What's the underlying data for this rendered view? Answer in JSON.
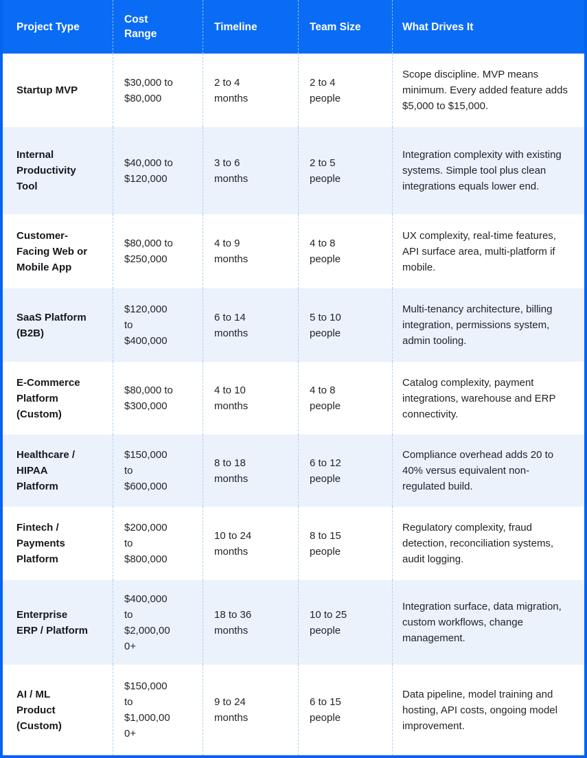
{
  "table": {
    "columns": [
      "Project Type",
      "Cost Range",
      "Timeline",
      "Team Size",
      "What Drives It"
    ],
    "rows": [
      {
        "project_type": "Startup MVP",
        "cost_range": "$30,000 to $80,000",
        "timeline": "2 to 4 months",
        "team_size": "2 to 4 people",
        "drivers": "Scope discipline. MVP means minimum. Every added feature adds $5,000 to $15,000."
      },
      {
        "project_type": "Internal Productivity Tool",
        "cost_range": "$40,000 to $120,000",
        "timeline": "3 to 6 months",
        "team_size": "2 to 5 people",
        "drivers": "Integration complexity with existing systems. Simple tool plus clean integrations equals lower end."
      },
      {
        "project_type": "Customer-Facing Web or Mobile App",
        "cost_range": "$80,000 to $250,000",
        "timeline": "4 to 9 months",
        "team_size": "4 to 8 people",
        "drivers": "UX complexity, real-time features, API surface area, multi-platform if mobile."
      },
      {
        "project_type": "SaaS Platform (B2B)",
        "cost_range": "$120,000 to $400,000",
        "timeline": "6 to 14 months",
        "team_size": "5 to 10 people",
        "drivers": "Multi-tenancy architecture, billing integration, permissions system, admin tooling."
      },
      {
        "project_type": "E-Commerce Platform (Custom)",
        "cost_range": "$80,000 to $300,000",
        "timeline": "4 to 10 months",
        "team_size": "4 to 8 people",
        "drivers": "Catalog complexity, payment integrations, warehouse and ERP connectivity."
      },
      {
        "project_type": "Healthcare / HIPAA Platform",
        "cost_range": "$150,000 to $600,000",
        "timeline": "8 to 18 months",
        "team_size": "6 to 12 people",
        "drivers": "Compliance overhead adds 20 to 40% versus equivalent non-regulated build."
      },
      {
        "project_type": "Fintech / Payments Platform",
        "cost_range": "$200,000 to $800,000",
        "timeline": "10 to 24 months",
        "team_size": "8 to 15 people",
        "drivers": "Regulatory complexity, fraud detection, reconciliation systems, audit logging."
      },
      {
        "project_type": "Enterprise ERP / Platform",
        "cost_range": "$400,000 to $2,000,000+",
        "timeline": "18 to 36 months",
        "team_size": "10 to 25 people",
        "drivers": "Integration surface, data migration, custom workflows, change management."
      },
      {
        "project_type": "AI / ML Product (Custom)",
        "cost_range": "$150,000 to $1,000,000+",
        "timeline": "9 to 24 months",
        "team_size": "6 to 15 people",
        "drivers": "Data pipeline, model training and hosting, API costs, ongoing model improvement."
      }
    ]
  },
  "colors": {
    "header_bg": "#0a6cf5",
    "outer_border": "#0563f2",
    "row_alt_bg": "#ebf2fb",
    "body_dash": "#aed0f2",
    "header_dash": "rgba(255,255,255,0.55)"
  }
}
